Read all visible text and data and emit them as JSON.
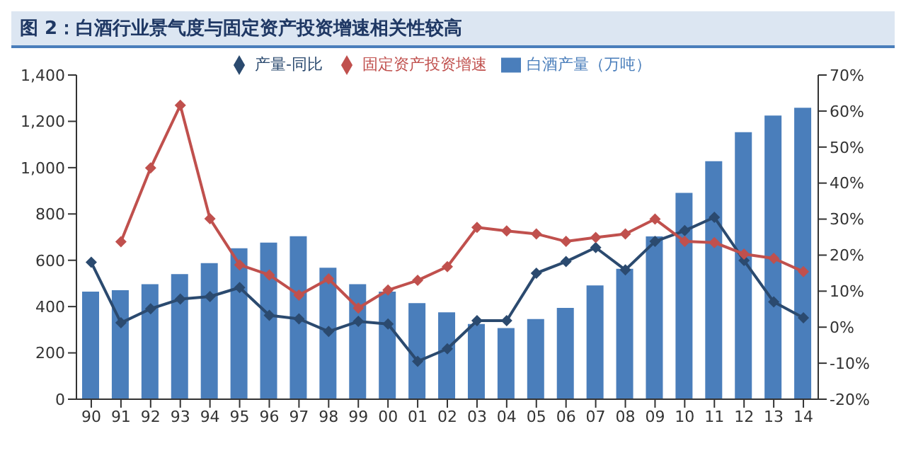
{
  "chart_data": {
    "type": "bar",
    "title": "图 2：白酒行业景气度与固定资产投资增速相关性较高",
    "categories": [
      "90",
      "91",
      "92",
      "93",
      "94",
      "95",
      "96",
      "97",
      "98",
      "99",
      "00",
      "01",
      "02",
      "03",
      "04",
      "05",
      "06",
      "07",
      "08",
      "09",
      "10",
      "11",
      "12",
      "13",
      "14"
    ],
    "series": [
      {
        "name": "白酒产量（万吨）",
        "color": "#4a7ebb",
        "values": [
          465,
          471,
          497,
          540,
          588,
          652,
          676,
          704,
          568,
          497,
          465,
          415,
          375,
          325,
          307,
          346,
          394,
          491,
          563,
          703,
          891,
          1028,
          1153,
          1225,
          1259
        ]
      },
      {
        "name": "产量-同比",
        "type": "line",
        "axis": "y2",
        "marker": "diamond",
        "color": "#2b4a6f",
        "values": [
          18,
          1.2,
          5.1,
          7.8,
          8.5,
          11,
          3.3,
          2.3,
          -1.2,
          1.6,
          0.9,
          -9.5,
          -6,
          1.8,
          1.8,
          15,
          18.2,
          22.1,
          15.9,
          23.8,
          26.8,
          30.5,
          18.5,
          7,
          2.6
        ]
      },
      {
        "name": "固定资产投资增速",
        "type": "line",
        "axis": "y2",
        "marker": "diamond",
        "color": "#c0504d",
        "values": [
          null,
          23.7,
          44.2,
          61.6,
          30.1,
          17.3,
          14.5,
          8.9,
          13.4,
          5.3,
          10.3,
          13,
          16.8,
          27.7,
          26.7,
          25.9,
          23.8,
          24.9,
          25.9,
          30,
          23.8,
          23.5,
          20.3,
          19.1,
          15.4
        ]
      }
    ],
    "ylim": [
      0,
      1400
    ],
    "yticks": [
      0,
      200,
      400,
      600,
      800,
      {
        "value": 1000,
        "label": "1,000"
      },
      {
        "value": 1200,
        "label": "1,200"
      },
      {
        "value": 1400,
        "label": "1,400"
      }
    ],
    "y2lim": [
      -20,
      70
    ],
    "y2ticks": [
      {
        "value": -20,
        "label": "-20%"
      },
      {
        "value": -10,
        "label": "-10%"
      },
      {
        "value": 0,
        "label": "0%"
      },
      {
        "value": 10,
        "label": "10%"
      },
      {
        "value": 20,
        "label": "20%"
      },
      {
        "value": 30,
        "label": "30%"
      },
      {
        "value": 40,
        "label": "40%"
      },
      {
        "value": 50,
        "label": "50%"
      },
      {
        "value": 60,
        "label": "60%"
      },
      {
        "value": 70,
        "label": "70%"
      }
    ],
    "legend": "top",
    "grid": false
  }
}
